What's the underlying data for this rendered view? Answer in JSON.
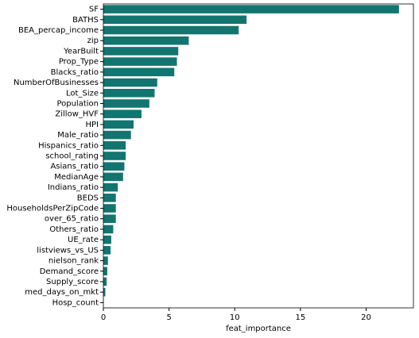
{
  "chart_data": {
    "type": "barh",
    "x_label": "feat_importance",
    "color": "#13756f",
    "categories": [
      "SF",
      "BATHS",
      "BEA_percap_income",
      "zip",
      "YearBuilt",
      "Prop_Type",
      "Blacks_ratio",
      "NumberOfBusinesses",
      "Lot_Size",
      "Population",
      "Zillow_HVF",
      "HPI",
      "Male_ratio",
      "Hispanics_ratio",
      "school_rating",
      "Asians_ratio",
      "MedianAge",
      "Indians_ratio",
      "BEDS",
      "HouseholdsPerZipCode",
      "over_65_ratio",
      "Others_ratio",
      "UE_rate",
      "listviews_vs_US",
      "nielson_rank",
      "Demand_score",
      "Supply_score",
      "med_days_on_mkt",
      "Hosp_count"
    ],
    "values": [
      22.5,
      10.9,
      10.3,
      6.5,
      5.7,
      5.6,
      5.4,
      4.1,
      3.9,
      3.5,
      2.9,
      2.3,
      2.1,
      1.7,
      1.7,
      1.6,
      1.5,
      1.1,
      0.95,
      0.95,
      0.95,
      0.75,
      0.6,
      0.55,
      0.35,
      0.3,
      0.25,
      0.15,
      0.02
    ],
    "xlim": [
      0,
      23.6
    ],
    "xticks": [
      0,
      5,
      10,
      15,
      20
    ]
  }
}
